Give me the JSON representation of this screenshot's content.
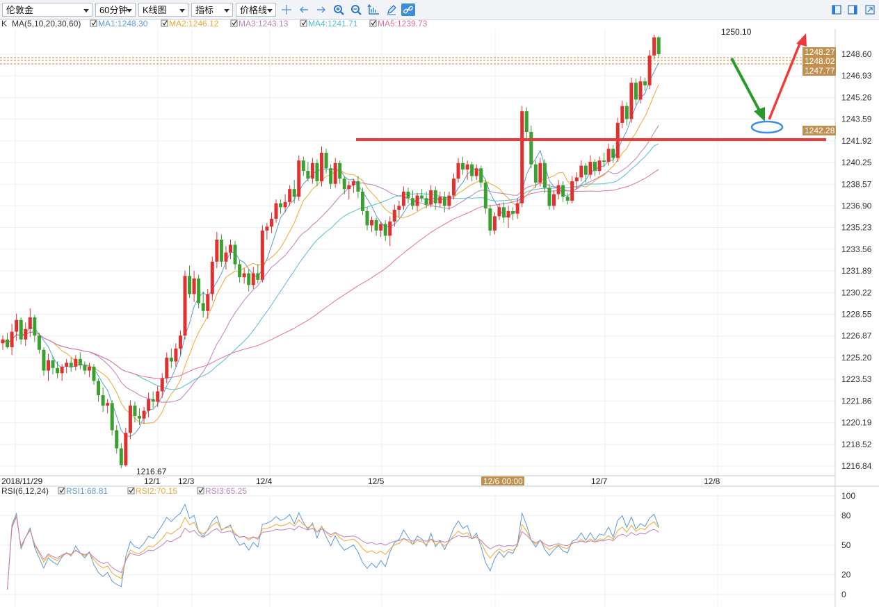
{
  "toolbar": {
    "symbol": "伦敦金",
    "period": "60分钟",
    "chart_type": "K线图",
    "indicator": "指标",
    "price_line": "价格线"
  },
  "ma_legend": {
    "prefix": "K",
    "name": "MA(5,10,20,30,60)",
    "items": [
      {
        "label": "MA1:1248.30",
        "color": "#5b9bd5"
      },
      {
        "label": "MA2:1246.12",
        "color": "#f0a830"
      },
      {
        "label": "MA3:1243.13",
        "color": "#c080c0"
      },
      {
        "label": "MA4:1241.71",
        "color": "#50c0d0"
      },
      {
        "label": "MA5:1239.73",
        "color": "#e070a0"
      }
    ]
  },
  "rsi_legend": {
    "name": "RSI(6,12,24)",
    "items": [
      {
        "label": "RSI1:68.81",
        "color": "#5b9bd5"
      },
      {
        "label": "RSI2:70.15",
        "color": "#f0a830"
      },
      {
        "label": "RSI3:65.25",
        "color": "#c080c0"
      }
    ]
  },
  "price_axis": [
    "1248.60",
    "1246.93",
    "1245.26",
    "1243.59",
    "1241.92",
    "1240.25",
    "1238.57",
    "1236.90",
    "1235.23",
    "1233.56",
    "1231.89",
    "1230.22",
    "1228.55",
    "1226.87",
    "1225.20",
    "1223.53",
    "1221.86",
    "1220.19",
    "1218.52",
    "1216.84"
  ],
  "rsi_axis": [
    "100",
    "80",
    "50",
    "20",
    "0"
  ],
  "time_axis": [
    "2018/11/29",
    "12/1",
    "12/3",
    "12/4",
    "12/5",
    "12/6 00:00",
    "12/7",
    "12/8"
  ],
  "price_tags": [
    {
      "label": "1248.27",
      "value": 1248.27
    },
    {
      "label": "1248.02",
      "value": 1248.02
    },
    {
      "label": "1247.77",
      "value": 1247.77
    },
    {
      "label": "1242.28",
      "value": 1242.28
    }
  ],
  "annotations": {
    "high_label": "1250.10",
    "low_label": "1216.67"
  },
  "colors": {
    "up": "#e03030",
    "down": "#3aa030",
    "drawing_red": "#f03a3a",
    "drawing_green": "#2a9a2a",
    "ellipse": "#3a90e0",
    "tag_bg": "#c09050"
  },
  "chart_data": {
    "type": "candlestick",
    "price_range": [
      1216.84,
      1248.6
    ],
    "candles": [
      [
        1226.3,
        1226.9,
        1225.8,
        1226.6
      ],
      [
        1226.6,
        1227.1,
        1225.9,
        1226.0
      ],
      [
        1226.0,
        1227.8,
        1225.4,
        1227.2
      ],
      [
        1227.2,
        1228.6,
        1226.5,
        1228.1
      ],
      [
        1228.1,
        1228.3,
        1226.2,
        1226.6
      ],
      [
        1226.6,
        1227.9,
        1226.1,
        1227.4
      ],
      [
        1227.4,
        1229.0,
        1226.8,
        1228.3
      ],
      [
        1228.3,
        1228.5,
        1226.4,
        1226.9
      ],
      [
        1226.9,
        1227.1,
        1225.5,
        1225.8
      ],
      [
        1225.8,
        1226.0,
        1223.8,
        1224.2
      ],
      [
        1224.2,
        1225.5,
        1223.4,
        1225.0
      ],
      [
        1225.0,
        1225.3,
        1223.9,
        1224.4
      ],
      [
        1224.4,
        1224.9,
        1223.6,
        1224.0
      ],
      [
        1224.0,
        1224.7,
        1223.4,
        1224.5
      ],
      [
        1224.5,
        1225.1,
        1224.0,
        1224.8
      ],
      [
        1224.8,
        1225.2,
        1224.1,
        1224.5
      ],
      [
        1224.5,
        1225.4,
        1224.2,
        1225.1
      ],
      [
        1225.1,
        1225.6,
        1224.3,
        1224.6
      ],
      [
        1224.6,
        1224.9,
        1223.9,
        1224.2
      ],
      [
        1224.2,
        1224.8,
        1223.7,
        1224.5
      ],
      [
        1224.5,
        1224.7,
        1223.1,
        1223.4
      ],
      [
        1223.4,
        1223.6,
        1221.8,
        1222.3
      ],
      [
        1222.3,
        1222.9,
        1221.0,
        1221.5
      ],
      [
        1221.5,
        1222.0,
        1220.9,
        1221.7
      ],
      [
        1221.7,
        1221.9,
        1219.2,
        1219.6
      ],
      [
        1219.6,
        1220.0,
        1217.8,
        1218.2
      ],
      [
        1218.2,
        1218.6,
        1216.67,
        1216.9
      ],
      [
        1216.9,
        1219.8,
        1216.8,
        1219.4
      ],
      [
        1219.4,
        1221.9,
        1218.9,
        1221.5
      ],
      [
        1221.5,
        1221.8,
        1220.2,
        1220.7
      ],
      [
        1220.7,
        1221.3,
        1220.0,
        1220.5
      ],
      [
        1220.5,
        1221.4,
        1220.1,
        1221.1
      ],
      [
        1221.1,
        1222.5,
        1220.6,
        1222.0
      ],
      [
        1222.0,
        1222.6,
        1221.3,
        1221.8
      ],
      [
        1221.8,
        1223.0,
        1221.4,
        1222.6
      ],
      [
        1222.6,
        1224.0,
        1222.1,
        1223.6
      ],
      [
        1223.6,
        1225.6,
        1223.2,
        1225.2
      ],
      [
        1225.2,
        1225.9,
        1224.4,
        1224.9
      ],
      [
        1224.9,
        1226.3,
        1224.5,
        1225.9
      ],
      [
        1225.9,
        1227.3,
        1225.4,
        1226.9
      ],
      [
        1226.9,
        1231.9,
        1226.6,
        1231.5
      ],
      [
        1231.5,
        1232.3,
        1229.8,
        1230.1
      ],
      [
        1230.1,
        1231.9,
        1229.5,
        1231.3
      ],
      [
        1231.3,
        1231.6,
        1229.0,
        1229.4
      ],
      [
        1229.4,
        1230.3,
        1228.3,
        1228.8
      ],
      [
        1228.8,
        1230.5,
        1228.2,
        1230.1
      ],
      [
        1230.1,
        1233.0,
        1229.6,
        1232.6
      ],
      [
        1232.6,
        1234.9,
        1232.1,
        1234.3
      ],
      [
        1234.3,
        1234.7,
        1232.2,
        1232.6
      ],
      [
        1232.6,
        1233.8,
        1232.0,
        1233.3
      ],
      [
        1233.3,
        1234.3,
        1232.8,
        1233.9
      ],
      [
        1233.9,
        1234.2,
        1232.0,
        1232.4
      ],
      [
        1232.4,
        1232.7,
        1231.0,
        1231.4
      ],
      [
        1231.4,
        1232.1,
        1230.9,
        1231.7
      ],
      [
        1231.7,
        1232.0,
        1230.3,
        1230.8
      ],
      [
        1230.8,
        1232.2,
        1230.5,
        1231.7
      ],
      [
        1231.7,
        1232.4,
        1230.9,
        1231.2
      ],
      [
        1231.2,
        1235.4,
        1231.0,
        1235.0
      ],
      [
        1235.0,
        1235.6,
        1234.3,
        1235.3
      ],
      [
        1235.3,
        1236.4,
        1234.8,
        1235.9
      ],
      [
        1235.9,
        1237.4,
        1235.6,
        1237.1
      ],
      [
        1237.1,
        1237.4,
        1236.3,
        1236.8
      ],
      [
        1236.8,
        1237.8,
        1236.4,
        1237.2
      ],
      [
        1237.2,
        1238.5,
        1236.9,
        1238.2
      ],
      [
        1238.2,
        1238.9,
        1237.1,
        1237.6
      ],
      [
        1237.6,
        1240.8,
        1237.3,
        1240.4
      ],
      [
        1240.4,
        1240.7,
        1239.2,
        1239.6
      ],
      [
        1239.6,
        1240.3,
        1238.8,
        1239.0
      ],
      [
        1239.0,
        1240.6,
        1238.6,
        1240.2
      ],
      [
        1240.2,
        1240.5,
        1238.4,
        1238.8
      ],
      [
        1238.8,
        1241.5,
        1238.4,
        1241.0
      ],
      [
        1241.0,
        1241.3,
        1239.4,
        1239.8
      ],
      [
        1239.8,
        1240.1,
        1238.2,
        1238.6
      ],
      [
        1238.6,
        1240.6,
        1238.3,
        1240.2
      ],
      [
        1240.2,
        1240.4,
        1238.6,
        1239.0
      ],
      [
        1239.0,
        1239.2,
        1237.8,
        1238.2
      ],
      [
        1238.2,
        1238.8,
        1237.4,
        1238.5
      ],
      [
        1238.5,
        1239.0,
        1237.9,
        1238.8
      ],
      [
        1238.8,
        1239.2,
        1237.5,
        1238.0
      ],
      [
        1238.0,
        1238.3,
        1236.2,
        1236.5
      ],
      [
        1236.5,
        1236.8,
        1235.0,
        1235.4
      ],
      [
        1235.4,
        1236.1,
        1234.9,
        1235.8
      ],
      [
        1235.8,
        1236.0,
        1234.6,
        1235.0
      ],
      [
        1235.0,
        1235.7,
        1234.5,
        1235.5
      ],
      [
        1235.5,
        1235.8,
        1234.2,
        1234.6
      ],
      [
        1234.6,
        1236.1,
        1233.8,
        1235.7
      ],
      [
        1235.7,
        1237.0,
        1235.3,
        1236.6
      ],
      [
        1236.6,
        1237.3,
        1236.0,
        1236.9
      ],
      [
        1236.9,
        1238.4,
        1236.6,
        1238.0
      ],
      [
        1238.0,
        1238.3,
        1237.1,
        1237.5
      ],
      [
        1237.5,
        1238.1,
        1236.6,
        1236.9
      ],
      [
        1236.9,
        1237.9,
        1236.5,
        1237.7
      ],
      [
        1237.7,
        1238.2,
        1237.2,
        1237.5
      ],
      [
        1237.5,
        1238.0,
        1236.7,
        1237.0
      ],
      [
        1237.0,
        1238.5,
        1236.8,
        1238.1
      ],
      [
        1238.1,
        1238.4,
        1236.6,
        1237.1
      ],
      [
        1237.1,
        1238.0,
        1236.8,
        1237.6
      ],
      [
        1237.6,
        1238.0,
        1236.4,
        1236.9
      ],
      [
        1236.9,
        1238.0,
        1236.6,
        1237.7
      ],
      [
        1237.7,
        1239.4,
        1237.4,
        1239.0
      ],
      [
        1239.0,
        1240.6,
        1238.7,
        1240.2
      ],
      [
        1240.2,
        1240.7,
        1239.3,
        1239.7
      ],
      [
        1239.7,
        1240.4,
        1238.9,
        1240.1
      ],
      [
        1240.1,
        1240.3,
        1238.8,
        1239.2
      ],
      [
        1239.2,
        1240.1,
        1238.9,
        1239.8
      ],
      [
        1239.8,
        1240.0,
        1238.3,
        1238.7
      ],
      [
        1238.7,
        1238.9,
        1236.3,
        1236.7
      ],
      [
        1236.7,
        1237.0,
        1234.6,
        1235.0
      ],
      [
        1235.0,
        1236.4,
        1234.7,
        1236.1
      ],
      [
        1236.1,
        1237.1,
        1235.8,
        1236.8
      ],
      [
        1236.8,
        1237.2,
        1235.6,
        1236.0
      ],
      [
        1236.0,
        1236.9,
        1235.2,
        1236.5
      ],
      [
        1236.5,
        1236.8,
        1235.8,
        1236.3
      ],
      [
        1236.3,
        1237.5,
        1235.9,
        1237.1
      ],
      [
        1237.1,
        1244.6,
        1236.8,
        1244.2
      ],
      [
        1244.2,
        1244.5,
        1242.0,
        1242.6
      ],
      [
        1242.6,
        1243.1,
        1239.8,
        1240.1
      ],
      [
        1240.1,
        1240.4,
        1238.3,
        1238.7
      ],
      [
        1238.7,
        1240.6,
        1238.4,
        1240.2
      ],
      [
        1240.2,
        1240.5,
        1237.9,
        1238.3
      ],
      [
        1238.3,
        1238.6,
        1236.6,
        1236.9
      ],
      [
        1236.9,
        1238.1,
        1236.6,
        1237.8
      ],
      [
        1237.8,
        1238.9,
        1237.4,
        1238.5
      ],
      [
        1238.5,
        1238.8,
        1237.2,
        1237.6
      ],
      [
        1237.6,
        1237.9,
        1237.0,
        1237.3
      ],
      [
        1237.3,
        1239.2,
        1237.1,
        1238.8
      ],
      [
        1238.8,
        1239.5,
        1238.3,
        1239.1
      ],
      [
        1239.1,
        1240.4,
        1238.8,
        1240.0
      ],
      [
        1240.0,
        1240.2,
        1238.7,
        1239.3
      ],
      [
        1239.3,
        1240.8,
        1239.0,
        1240.3
      ],
      [
        1240.3,
        1240.5,
        1239.2,
        1239.6
      ],
      [
        1239.6,
        1240.7,
        1239.3,
        1240.4
      ],
      [
        1240.4,
        1241.0,
        1239.9,
        1240.3
      ],
      [
        1240.3,
        1241.7,
        1240.0,
        1241.3
      ],
      [
        1241.3,
        1241.6,
        1240.2,
        1240.6
      ],
      [
        1240.6,
        1243.7,
        1240.3,
        1243.3
      ],
      [
        1243.3,
        1245.0,
        1242.9,
        1244.6
      ],
      [
        1244.6,
        1244.9,
        1243.1,
        1243.6
      ],
      [
        1243.6,
        1246.8,
        1243.3,
        1246.4
      ],
      [
        1246.4,
        1246.7,
        1244.7,
        1245.1
      ],
      [
        1245.1,
        1246.9,
        1244.8,
        1246.5
      ],
      [
        1246.5,
        1246.8,
        1245.8,
        1246.2
      ],
      [
        1246.2,
        1248.9,
        1245.9,
        1248.5
      ],
      [
        1248.5,
        1250.1,
        1248.2,
        1249.9
      ],
      [
        1249.9,
        1250.0,
        1248.3,
        1248.6
      ]
    ]
  }
}
